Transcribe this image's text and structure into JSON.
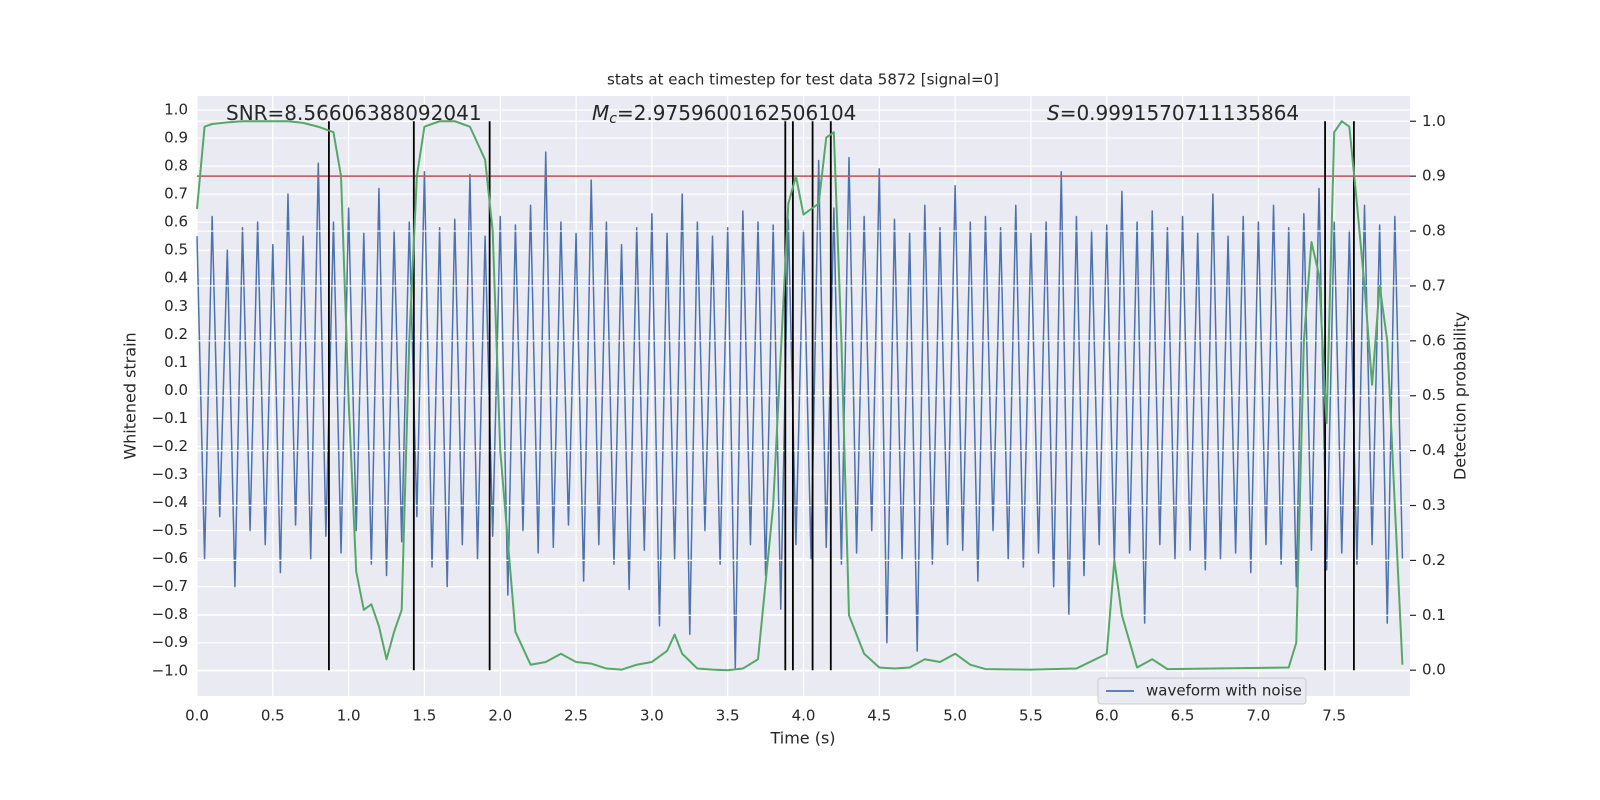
{
  "chart_data": {
    "type": "line",
    "title": "stats at each timestep for test data 5872 [signal=0]",
    "xlabel": "Time (s)",
    "ylabel": "Whitened strain",
    "y2label": "Detection probability",
    "grid": true,
    "legend": "lower right",
    "xlim": [
      0,
      8.0
    ],
    "xticks": [
      {
        "value": 0,
        "label": "0.0"
      },
      {
        "value": 0.5,
        "label": "0.5"
      },
      {
        "value": 1,
        "label": "1.0"
      },
      {
        "value": 1.5,
        "label": "1.5"
      },
      {
        "value": 2,
        "label": "2.0"
      },
      {
        "value": 2.5,
        "label": "2.5"
      },
      {
        "value": 3,
        "label": "3.0"
      },
      {
        "value": 3.5,
        "label": "3.5"
      },
      {
        "value": 4,
        "label": "4.0"
      },
      {
        "value": 4.5,
        "label": "4.5"
      },
      {
        "value": 5,
        "label": "5.0"
      },
      {
        "value": 5.5,
        "label": "5.5"
      },
      {
        "value": 6,
        "label": "6.0"
      },
      {
        "value": 6.5,
        "label": "6.5"
      },
      {
        "value": 7,
        "label": "7.0"
      },
      {
        "value": 7.5,
        "label": "7.5"
      }
    ],
    "ylim": [
      -1.09,
      1.05
    ],
    "yticks": [
      {
        "value": -1,
        "label": "−1.0"
      },
      {
        "value": -0.9,
        "label": "−0.9"
      },
      {
        "value": -0.8,
        "label": "−0.8"
      },
      {
        "value": -0.7,
        "label": "−0.7"
      },
      {
        "value": -0.6,
        "label": "−0.6"
      },
      {
        "value": -0.5,
        "label": "−0.5"
      },
      {
        "value": -0.4,
        "label": "−0.4"
      },
      {
        "value": -0.3,
        "label": "−0.3"
      },
      {
        "value": -0.2,
        "label": "−0.2"
      },
      {
        "value": -0.1,
        "label": "−0.1"
      },
      {
        "value": 0,
        "label": "0.0"
      },
      {
        "value": 0.1,
        "label": "0.1"
      },
      {
        "value": 0.2,
        "label": "0.2"
      },
      {
        "value": 0.3,
        "label": "0.3"
      },
      {
        "value": 0.4,
        "label": "0.4"
      },
      {
        "value": 0.5,
        "label": "0.5"
      },
      {
        "value": 0.6,
        "label": "0.6"
      },
      {
        "value": 0.7,
        "label": "0.7"
      },
      {
        "value": 0.8,
        "label": "0.8"
      },
      {
        "value": 0.9,
        "label": "0.9"
      },
      {
        "value": 1,
        "label": "1.0"
      }
    ],
    "y2lim": [
      -0.047,
      1.046
    ],
    "y2ticks": [
      {
        "value": 0,
        "label": "0.0"
      },
      {
        "value": 0.1,
        "label": "0.1"
      },
      {
        "value": 0.2,
        "label": "0.2"
      },
      {
        "value": 0.3,
        "label": "0.3"
      },
      {
        "value": 0.4,
        "label": "0.4"
      },
      {
        "value": 0.5,
        "label": "0.5"
      },
      {
        "value": 0.6,
        "label": "0.6"
      },
      {
        "value": 0.7,
        "label": "0.7"
      },
      {
        "value": 0.8,
        "label": "0.8"
      },
      {
        "value": 0.9,
        "label": "0.9"
      },
      {
        "value": 1,
        "label": "1.0"
      }
    ],
    "annotations": [
      {
        "text": "SNR=8.56606388092041"
      },
      {
        "symbol": "M",
        "subscript": "c",
        "text": "=2.9759600162506104"
      },
      {
        "symbol": "S",
        "text": "=0.9991570711135864"
      }
    ],
    "series": [
      {
        "name": "waveform with noise",
        "color": "#4c72b0",
        "x": [
          0,
          0.05,
          0.1,
          0.15,
          0.2,
          0.25,
          0.3,
          0.35,
          0.4,
          0.45,
          0.5,
          0.55,
          0.6,
          0.65,
          0.7,
          0.75,
          0.8,
          0.85,
          0.9,
          0.95,
          1,
          1.05,
          1.1,
          1.15,
          1.2,
          1.25,
          1.3,
          1.35,
          1.4,
          1.45,
          1.5,
          1.55,
          1.6,
          1.65,
          1.7,
          1.75,
          1.8,
          1.85,
          1.9,
          1.95,
          2,
          2.05,
          2.1,
          2.15,
          2.2,
          2.25,
          2.3,
          2.35,
          2.4,
          2.45,
          2.5,
          2.55,
          2.6,
          2.65,
          2.7,
          2.75,
          2.8,
          2.85,
          2.9,
          2.95,
          3,
          3.05,
          3.1,
          3.15,
          3.2,
          3.25,
          3.3,
          3.35,
          3.4,
          3.45,
          3.5,
          3.55,
          3.6,
          3.65,
          3.7,
          3.75,
          3.8,
          3.85,
          3.9,
          3.95,
          4,
          4.05,
          4.1,
          4.15,
          4.2,
          4.25,
          4.3,
          4.35,
          4.4,
          4.45,
          4.5,
          4.55,
          4.6,
          4.65,
          4.7,
          4.75,
          4.8,
          4.85,
          4.9,
          4.95,
          5,
          5.05,
          5.1,
          5.15,
          5.2,
          5.25,
          5.3,
          5.35,
          5.4,
          5.45,
          5.5,
          5.55,
          5.6,
          5.65,
          5.7,
          5.75,
          5.8,
          5.85,
          5.9,
          5.95,
          6,
          6.05,
          6.1,
          6.15,
          6.2,
          6.25,
          6.3,
          6.35,
          6.4,
          6.45,
          6.5,
          6.55,
          6.6,
          6.65,
          6.7,
          6.75,
          6.8,
          6.85,
          6.9,
          6.95,
          7,
          7.05,
          7.1,
          7.15,
          7.2,
          7.25,
          7.3,
          7.35,
          7.4,
          7.45,
          7.5,
          7.55,
          7.6,
          7.65,
          7.7,
          7.75,
          7.8,
          7.85,
          7.9,
          7.95
        ],
        "values": [
          0.55,
          -0.6,
          0.62,
          -0.45,
          0.5,
          -0.7,
          0.58,
          -0.5,
          0.6,
          -0.55,
          0.52,
          -0.65,
          0.7,
          -0.48,
          0.55,
          -0.6,
          0.81,
          -0.52,
          0.6,
          -0.58,
          0.65,
          -0.5,
          0.56,
          -0.62,
          0.72,
          -0.66,
          0.57,
          -0.54,
          0.6,
          -0.45,
          0.78,
          -0.63,
          0.58,
          -0.7,
          0.61,
          -0.55,
          0.77,
          -0.6,
          0.55,
          -0.52,
          0.62,
          -0.73,
          0.59,
          -0.5,
          0.66,
          -0.58,
          0.85,
          -0.56,
          0.6,
          -0.48,
          0.56,
          -0.68,
          0.75,
          -0.55,
          0.6,
          -0.62,
          0.52,
          -0.71,
          0.58,
          -0.57,
          0.63,
          -0.84,
          0.56,
          -0.6,
          0.7,
          -0.87,
          0.6,
          -0.5,
          0.55,
          -0.62,
          0.58,
          -0.99,
          0.64,
          -0.55,
          0.6,
          -0.66,
          0.59,
          -0.78,
          0.61,
          -0.55,
          0.57,
          -0.6,
          0.82,
          -0.56,
          0.65,
          -0.62,
          0.83,
          -0.58,
          0.62,
          -0.5,
          0.79,
          -0.9,
          0.61,
          -0.6,
          0.56,
          -0.93,
          0.66,
          -0.62,
          0.58,
          -0.55,
          0.73,
          -0.57,
          0.6,
          -0.68,
          0.62,
          -0.5,
          0.58,
          -0.6,
          0.66,
          -0.63,
          0.56,
          -0.58,
          0.6,
          -0.7,
          0.78,
          -0.8,
          0.62,
          -0.66,
          0.57,
          -0.55,
          0.59,
          -0.62,
          0.71,
          -0.58,
          0.6,
          -0.83,
          0.64,
          -0.55,
          0.58,
          -0.6,
          0.62,
          -0.57,
          0.56,
          -0.64,
          0.7,
          -0.6,
          0.55,
          -0.58,
          0.62,
          -0.65,
          0.6,
          -0.55,
          0.66,
          -0.62,
          0.58,
          -0.7,
          0.63,
          -0.57,
          0.72,
          -0.64,
          0.6,
          -0.58,
          0.57,
          -0.62,
          0.66,
          -0.55,
          0.59,
          -0.83,
          0.62,
          -0.6
        ]
      },
      {
        "color": "#55a868",
        "axis": "y2",
        "x": [
          0,
          0.05,
          0.1,
          0.2,
          0.3,
          0.4,
          0.5,
          0.6,
          0.7,
          0.8,
          0.9,
          0.95,
          1,
          1.05,
          1.1,
          1.15,
          1.2,
          1.25,
          1.3,
          1.35,
          1.4,
          1.45,
          1.5,
          1.6,
          1.7,
          1.8,
          1.9,
          1.95,
          2,
          2.1,
          2.2,
          2.3,
          2.4,
          2.5,
          2.6,
          2.7,
          2.8,
          2.9,
          3,
          3.1,
          3.15,
          3.2,
          3.3,
          3.4,
          3.5,
          3.6,
          3.7,
          3.8,
          3.9,
          3.95,
          4,
          4.1,
          4.15,
          4.2,
          4.25,
          4.3,
          4.4,
          4.5,
          4.6,
          4.7,
          4.8,
          4.9,
          5,
          5.1,
          5.2,
          5.5,
          5.8,
          6,
          6.05,
          6.1,
          6.2,
          6.3,
          6.4,
          7.2,
          7.25,
          7.3,
          7.35,
          7.4,
          7.45,
          7.5,
          7.55,
          7.6,
          7.65,
          7.7,
          7.75,
          7.8,
          7.85,
          7.9,
          7.95
        ],
        "values": [
          0.84,
          0.99,
          0.995,
          0.998,
          1,
          1,
          1,
          1,
          0.997,
          0.99,
          0.98,
          0.9,
          0.49,
          0.18,
          0.11,
          0.12,
          0.08,
          0.02,
          0.07,
          0.11,
          0.6,
          0.9,
          0.99,
          1,
          1,
          0.99,
          0.93,
          0.8,
          0.4,
          0.07,
          0.01,
          0.015,
          0.03,
          0.015,
          0.012,
          0.003,
          0.001,
          0.01,
          0.015,
          0.035,
          0.065,
          0.03,
          0.003,
          0.001,
          0,
          0.003,
          0.02,
          0.3,
          0.85,
          0.9,
          0.83,
          0.85,
          0.97,
          0.98,
          0.6,
          0.1,
          0.03,
          0.005,
          0.003,
          0.005,
          0.02,
          0.015,
          0.03,
          0.01,
          0.002,
          0.001,
          0.003,
          0.03,
          0.2,
          0.1,
          0.005,
          0.02,
          0.002,
          0.005,
          0.05,
          0.6,
          0.78,
          0.72,
          0.45,
          0.98,
          1,
          0.99,
          0.85,
          0.7,
          0.52,
          0.7,
          0.6,
          0.3,
          0.01
        ]
      }
    ],
    "hline": {
      "value": 0.9,
      "axis": "y2",
      "color": "#c44e52"
    },
    "vlines": {
      "x": [
        0.87,
        1.43,
        1.93,
        3.88,
        3.93,
        4.06,
        4.18,
        7.44,
        7.63
      ],
      "y2min": 0,
      "y2max": 1,
      "color": "#000000"
    }
  }
}
